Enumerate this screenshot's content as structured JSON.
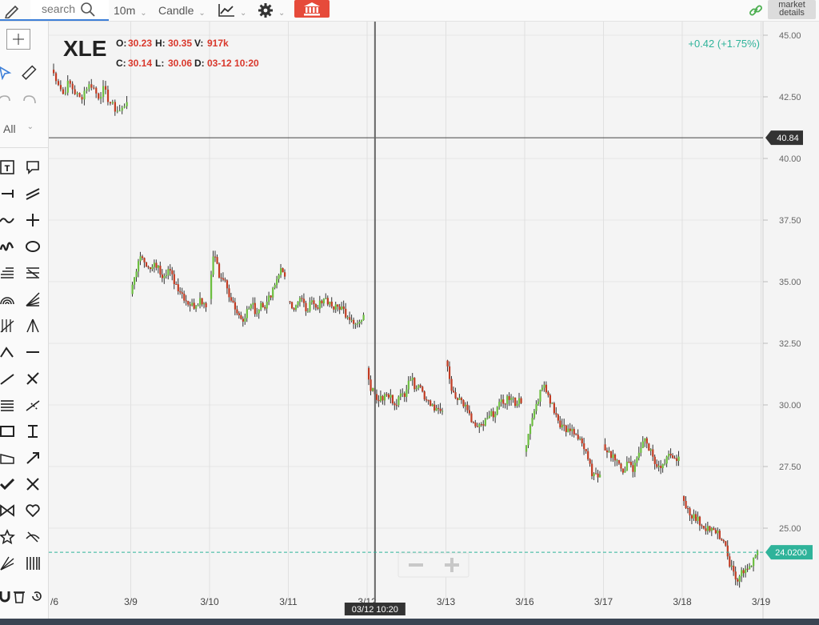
{
  "toolbar": {
    "search_placeholder": "search",
    "interval": "10m",
    "chart_style": "Candle",
    "market_details": [
      "market",
      "details"
    ]
  },
  "sidebar": {
    "all_label": "All"
  },
  "colors": {
    "up": "#6cbf3f",
    "down": "#c23b22",
    "accent": "#2fb39a",
    "ohlc_red": "#d9382c"
  },
  "chart_data": {
    "type": "candlestick",
    "symbol": "XLE",
    "ohlc": {
      "O": {
        "label": "O:",
        "value": "30.23"
      },
      "H": {
        "label": "H:",
        "value": "30.35"
      },
      "V": {
        "label": "V:",
        "value": "917k"
      },
      "C": {
        "label": "C:",
        "value": "30.14"
      },
      "L": {
        "label": "L:",
        "value": "30.06"
      },
      "D": {
        "label": "D:",
        "value": "03-12 10:20"
      }
    },
    "change": "+0.42 (+1.75%)",
    "ylim": [
      22.5,
      45.5
    ],
    "y_ticks": [
      "45.00",
      "42.50",
      "40.00",
      "37.50",
      "35.00",
      "32.50",
      "30.00",
      "27.50",
      "25.00"
    ],
    "x_ticks": [
      {
        "label": "/6",
        "day": 0
      },
      {
        "label": "3/9",
        "day": 1
      },
      {
        "label": "3/10",
        "day": 2
      },
      {
        "label": "3/11",
        "day": 3
      },
      {
        "label": "3/12",
        "day": 4
      },
      {
        "label": "3/13",
        "day": 5
      },
      {
        "label": "3/16",
        "day": 6
      },
      {
        "label": "3/17",
        "day": 7
      },
      {
        "label": "3/18",
        "day": 8
      },
      {
        "label": "3/19",
        "day": 9
      }
    ],
    "crosshair": {
      "price": "40.84",
      "price_value": 40.84,
      "time_label": "03/12 10:20",
      "day": 4.1
    },
    "last_price": {
      "label": "24.0200",
      "value": 24.02
    },
    "sessions": [
      {
        "day": 0,
        "open": 43.6,
        "path": [
          43.6,
          43.2,
          42.6,
          43.1,
          42.7,
          42.4,
          42.9,
          43.0,
          42.5,
          42.8,
          42.3,
          42.0,
          41.9,
          42.4
        ]
      },
      {
        "day": 1,
        "open": 34.5,
        "path": [
          34.5,
          35.6,
          36.1,
          35.4,
          35.7,
          35.3,
          35.5,
          35.0,
          34.6,
          34.2,
          34.0,
          34.3,
          34.1
        ]
      },
      {
        "day": 2,
        "open": 34.3,
        "path": [
          34.3,
          36.3,
          35.3,
          35.1,
          34.6,
          34.2,
          33.7,
          33.5,
          33.8,
          34.1,
          33.7,
          34.2,
          34.0,
          34.5,
          35.0,
          35.5,
          35.3
        ]
      },
      {
        "day": 3,
        "open": 34.2,
        "path": [
          34.2,
          34.0,
          34.3,
          33.9,
          34.1,
          33.8,
          34.4,
          34.2,
          33.9,
          34.0,
          33.7,
          33.5,
          33.3,
          33.5
        ]
      },
      {
        "day": 4,
        "open": 31.5,
        "path": [
          31.5,
          30.6,
          30.3,
          30.2,
          30.4,
          30.3,
          30.1,
          30.3,
          30.5,
          31.2,
          30.8,
          30.9,
          30.4,
          30.2,
          30.0,
          29.8,
          29.6
        ]
      },
      {
        "day": 5,
        "open": 31.8,
        "path": [
          31.8,
          30.6,
          30.3,
          30.0,
          29.4,
          29.0,
          29.2,
          29.5,
          29.8,
          30.1,
          30.3,
          30.1,
          30.2
        ]
      },
      {
        "day": 6,
        "open": 28.1,
        "path": [
          28.1,
          28.9,
          29.6,
          30.3,
          30.8,
          30.4,
          29.9,
          29.4,
          29.1,
          28.9,
          29.0,
          28.8,
          28.6,
          28.0,
          27.4,
          27.0,
          27.3
        ]
      },
      {
        "day": 7,
        "open": 28.4,
        "path": [
          28.4,
          28.1,
          27.9,
          27.5,
          27.4,
          27.6,
          27.3,
          28.1,
          28.6,
          28.3,
          27.9,
          27.4,
          27.5,
          27.9,
          27.7,
          27.9
        ]
      },
      {
        "day": 8,
        "open": 26.3,
        "path": [
          26.3,
          25.8,
          25.5,
          25.3,
          25.1,
          25.0,
          24.8,
          24.7,
          24.2,
          23.5,
          22.8,
          23.3,
          23.2,
          23.6,
          24.0
        ]
      }
    ]
  }
}
